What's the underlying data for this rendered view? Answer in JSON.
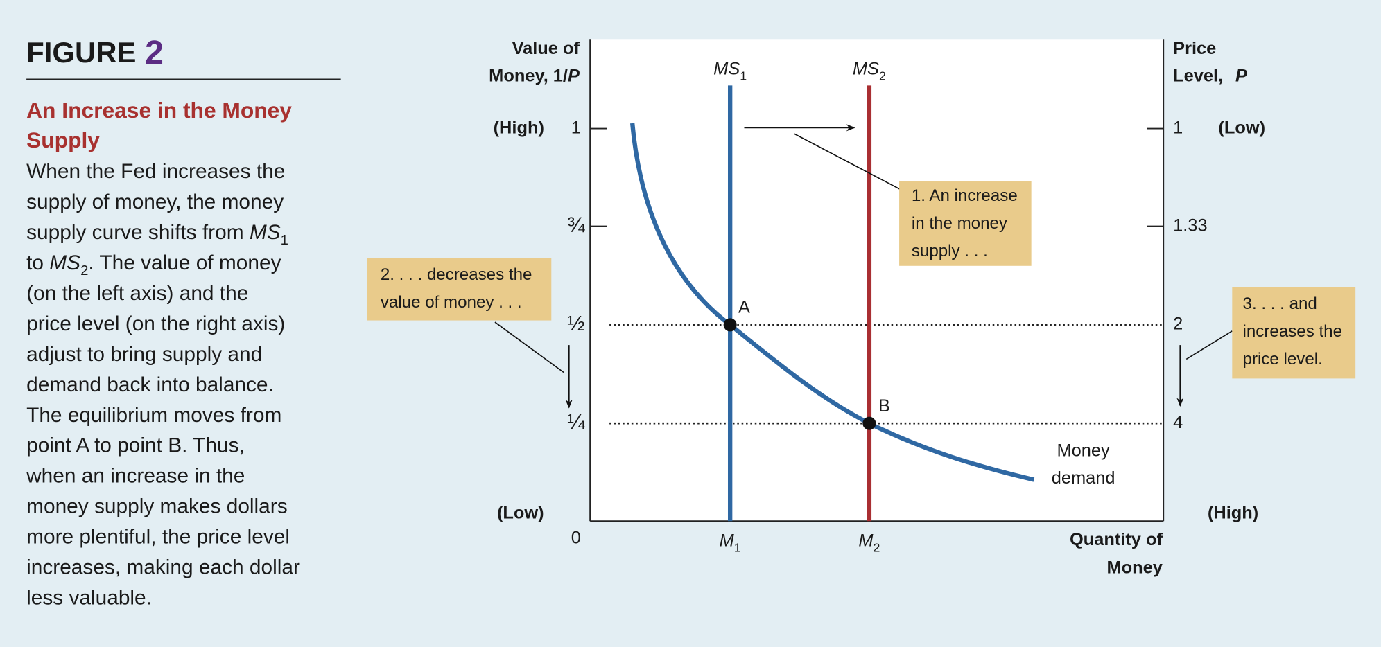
{
  "figure": {
    "label": "FIGURE",
    "number": "2"
  },
  "title": [
    "An Increase in the Money",
    "Supply"
  ],
  "caption": [
    [
      {
        "text": "When the Fed increases the"
      }
    ],
    [
      {
        "text": "supply of money, the money"
      }
    ],
    [
      {
        "text": "supply curve shifts from "
      },
      {
        "text": "MS",
        "style": "italic"
      },
      {
        "text": "1",
        "style": "sub"
      }
    ],
    [
      {
        "text": "to "
      },
      {
        "text": "MS",
        "style": "italic"
      },
      {
        "text": "2",
        "style": "sub"
      },
      {
        "text": ". The value of money"
      }
    ],
    [
      {
        "text": "(on the left axis) and the"
      }
    ],
    [
      {
        "text": "price level (on the right axis)"
      }
    ],
    [
      {
        "text": "adjust to bring supply and"
      }
    ],
    [
      {
        "text": "demand back into balance."
      }
    ],
    [
      {
        "text": "The equilibrium moves from"
      }
    ],
    [
      {
        "text": "point A to point B. Thus,"
      }
    ],
    [
      {
        "text": "when an increase in the"
      }
    ],
    [
      {
        "text": "money supply makes dollars"
      }
    ],
    [
      {
        "text": "more plentiful, the price level"
      }
    ],
    [
      {
        "text": "increases, making each dollar"
      }
    ],
    [
      {
        "text": "less valuable."
      }
    ]
  ],
  "left_axis": {
    "title": [
      "Value of",
      "Money, 1/"
    ],
    "title_var": "P",
    "ticks": [
      "1",
      "¾",
      "½",
      "¼",
      "0"
    ],
    "high": "(High)",
    "low": "(Low)"
  },
  "right_axis": {
    "title": [
      "Price",
      "Level,"
    ],
    "title_var": "P",
    "ticks": [
      "1",
      "1.33",
      "2",
      "4"
    ],
    "high": "(High)",
    "low": "(Low)"
  },
  "x_axis": {
    "title": [
      "Quantity of",
      "Money"
    ],
    "ticks": [
      {
        "var": "M",
        "sub": "1"
      },
      {
        "var": "M",
        "sub": "2"
      }
    ]
  },
  "curves": {
    "supply": [
      {
        "var": "MS",
        "sub": "1"
      },
      {
        "var": "MS",
        "sub": "2"
      }
    ],
    "demand": [
      "Money",
      "demand"
    ]
  },
  "points": [
    "A",
    "B"
  ],
  "callouts": [
    [
      "1. An increase",
      "in the money",
      "supply . . ."
    ],
    [
      "2. . . . decreases the",
      "value of money . . ."
    ],
    [
      "3. . . . and",
      "increases the",
      "price level."
    ]
  ]
}
